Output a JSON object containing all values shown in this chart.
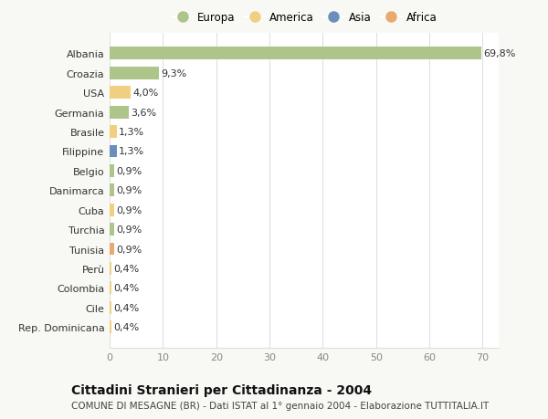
{
  "categories": [
    "Albania",
    "Croazia",
    "USA",
    "Germania",
    "Brasile",
    "Filippine",
    "Belgio",
    "Danimarca",
    "Cuba",
    "Turchia",
    "Tunisia",
    "Perù",
    "Colombia",
    "Cile",
    "Rep. Dominicana"
  ],
  "values": [
    69.8,
    9.3,
    4.0,
    3.6,
    1.3,
    1.3,
    0.9,
    0.9,
    0.9,
    0.9,
    0.9,
    0.4,
    0.4,
    0.4,
    0.4
  ],
  "labels": [
    "69,8%",
    "9,3%",
    "4,0%",
    "3,6%",
    "1,3%",
    "1,3%",
    "0,9%",
    "0,9%",
    "0,9%",
    "0,9%",
    "0,9%",
    "0,4%",
    "0,4%",
    "0,4%",
    "0,4%"
  ],
  "continents": [
    "Europa",
    "Europa",
    "America",
    "Europa",
    "America",
    "Asia",
    "Europa",
    "Europa",
    "America",
    "Europa",
    "Africa",
    "America",
    "America",
    "America",
    "America"
  ],
  "colors": {
    "Europa": "#adc48a",
    "America": "#f0d080",
    "Asia": "#6a8fbf",
    "Africa": "#e8aa70"
  },
  "legend_order": [
    "Europa",
    "America",
    "Asia",
    "Africa"
  ],
  "title": "Cittadini Stranieri per Cittadinanza - 2004",
  "subtitle": "COMUNE DI MESAGNE (BR) - Dati ISTAT al 1° gennaio 2004 - Elaborazione TUTTITALIA.IT",
  "xlim": [
    0,
    73
  ],
  "xticks": [
    0,
    10,
    20,
    30,
    40,
    50,
    60,
    70
  ],
  "bg_color": "#f8f8f4",
  "plot_bg_color": "#ffffff",
  "grid_color": "#e0e0e0",
  "title_fontsize": 10,
  "subtitle_fontsize": 7.5,
  "label_fontsize": 8,
  "tick_fontsize": 8,
  "legend_fontsize": 8.5,
  "bar_height": 0.65
}
